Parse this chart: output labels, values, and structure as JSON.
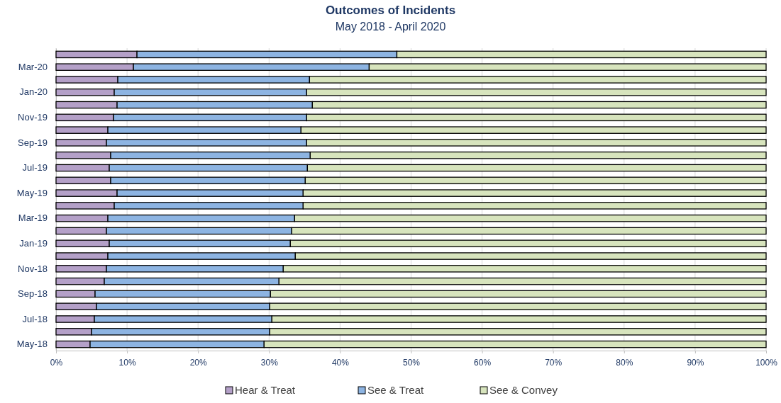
{
  "chart_data": {
    "type": "bar",
    "orientation": "horizontal",
    "stacked": true,
    "title": "Outcomes of Incidents",
    "subtitle": "May 2018 - April 2020",
    "categories": [
      null,
      "Mar-20",
      null,
      "Jan-20",
      null,
      "Nov-19",
      null,
      "Sep-19",
      null,
      "Jul-19",
      null,
      "May-19",
      null,
      "Mar-19",
      null,
      "Jan-19",
      null,
      "Nov-18",
      null,
      "Sep-18",
      null,
      "Jul-18",
      null,
      "May-18"
    ],
    "series": [
      {
        "name": "Hear & Treat",
        "color": "#b4a0c8",
        "values": [
          11.4,
          10.9,
          8.7,
          8.2,
          8.6,
          8.1,
          7.3,
          7.1,
          7.7,
          7.5,
          7.7,
          8.6,
          8.2,
          7.3,
          7.1,
          7.5,
          7.3,
          7.1,
          6.8,
          5.5,
          5.7,
          5.4,
          5.0,
          4.8
        ]
      },
      {
        "name": "See & Treat",
        "color": "#8db4e2",
        "values": [
          36.6,
          33.2,
          27.0,
          27.1,
          27.5,
          27.2,
          27.2,
          28.2,
          28.1,
          27.9,
          27.4,
          26.2,
          26.6,
          26.3,
          26.1,
          25.5,
          26.4,
          24.9,
          24.6,
          24.7,
          24.4,
          25.0,
          25.1,
          24.5
        ]
      },
      {
        "name": "See & Convey",
        "color": "#d7e4bd",
        "values": [
          52.0,
          55.9,
          64.3,
          64.7,
          63.9,
          64.7,
          65.5,
          64.7,
          64.2,
          64.6,
          64.9,
          65.2,
          65.2,
          66.4,
          66.8,
          67.0,
          66.3,
          68.0,
          68.6,
          69.8,
          69.9,
          69.6,
          69.9,
          70.7
        ]
      }
    ],
    "xlim": [
      0,
      100
    ],
    "xticks": [
      {
        "value": 0,
        "label": "0%"
      },
      {
        "value": 10,
        "label": "10%"
      },
      {
        "value": 20,
        "label": "20%"
      },
      {
        "value": 30,
        "label": "30%"
      },
      {
        "value": 40,
        "label": "40%"
      },
      {
        "value": 50,
        "label": "50%"
      },
      {
        "value": 60,
        "label": "60%"
      },
      {
        "value": 70,
        "label": "70%"
      },
      {
        "value": 80,
        "label": "80%"
      },
      {
        "value": 90,
        "label": "90%"
      },
      {
        "value": 100,
        "label": "100%"
      }
    ],
    "grid": "x",
    "legend": "bottom"
  }
}
